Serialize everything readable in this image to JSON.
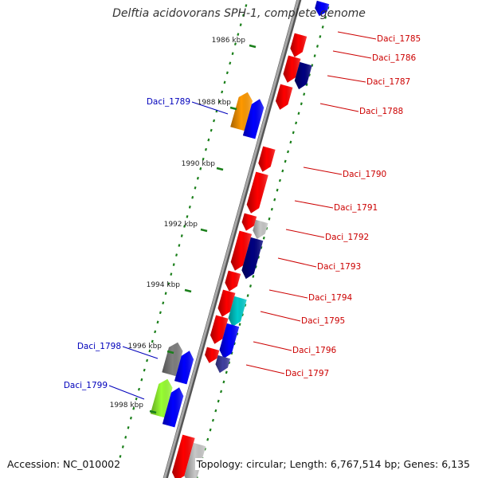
{
  "title": "Delftia acidovorans SPH-1, complete genome",
  "accession": "Accession: NC_010002",
  "topology": "Topology: circular; Length: 6,767,514 bp; Genes: 6,135",
  "colors": {
    "backbone": "#7f7f7f",
    "tick": "#1a7f1a",
    "forward_label": "#cc0000",
    "reverse_label": "#0000bb",
    "red": "#ff0000",
    "blue": "#0000ff",
    "navy": "#000080",
    "orange": "#ff9900",
    "grey": "#7f7f7f",
    "lightgrey": "#c8c8c8",
    "cyan": "#00cccc",
    "purple": "#4040a0",
    "lime": "#99ff33"
  },
  "kbp_markers": [
    "1986 kbp",
    "1988 kbp",
    "1990 kbp",
    "1992 kbp",
    "1994 kbp",
    "1996 kbp",
    "1998 kbp"
  ],
  "forward_labels": [
    "Daci_1785",
    "Daci_1786",
    "Daci_1787",
    "Daci_1788",
    "Daci_1790",
    "Daci_1791",
    "Daci_1792",
    "Daci_1793",
    "Daci_1794",
    "Daci_1795",
    "Daci_1796",
    "Daci_1797"
  ],
  "reverse_labels": [
    "Daci_1789",
    "Daci_1798",
    "Daci_1799"
  ]
}
